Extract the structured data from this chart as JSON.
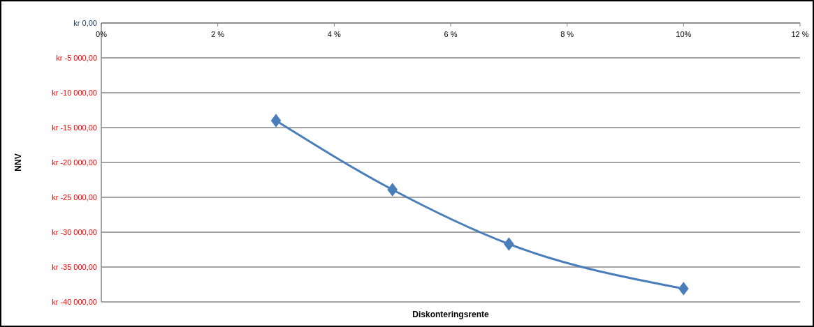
{
  "chart_data": {
    "type": "line",
    "xlabel": "Diskonteringsrente",
    "ylabel": "NNV",
    "x": [
      3,
      5,
      7,
      10
    ],
    "series": [
      {
        "color": "#4a7ebb",
        "values": [
          -14000,
          -23900,
          -31700,
          -38100
        ]
      }
    ],
    "xlim": [
      0,
      12
    ],
    "xticks": [
      {
        "value": 0,
        "label": "0%"
      },
      {
        "value": 2,
        "label": "2 %"
      },
      {
        "value": 4,
        "label": "4 %"
      },
      {
        "value": 6,
        "label": "6 %"
      },
      {
        "value": 8,
        "label": "8 %"
      },
      {
        "value": 10,
        "label": "10%"
      },
      {
        "value": 12,
        "label": "12 %"
      }
    ],
    "ylim": [
      -40000,
      0
    ],
    "yticks": [
      {
        "value": 0,
        "label": "kr 0,00"
      },
      {
        "value": -5000,
        "label": "kr -5 000,00"
      },
      {
        "value": -10000,
        "label": "kr -10 000,00"
      },
      {
        "value": -15000,
        "label": "kr -15 000,00"
      },
      {
        "value": -20000,
        "label": "kr -20 000,00"
      },
      {
        "value": -25000,
        "label": "kr -25 000,00"
      },
      {
        "value": -30000,
        "label": "kr -30 000,00"
      },
      {
        "value": -35000,
        "label": "kr -35 000,00"
      },
      {
        "value": -40000,
        "label": "kr -40 000,00"
      }
    ],
    "grid": "y",
    "marker": "diamond",
    "line_style": "solid"
  }
}
